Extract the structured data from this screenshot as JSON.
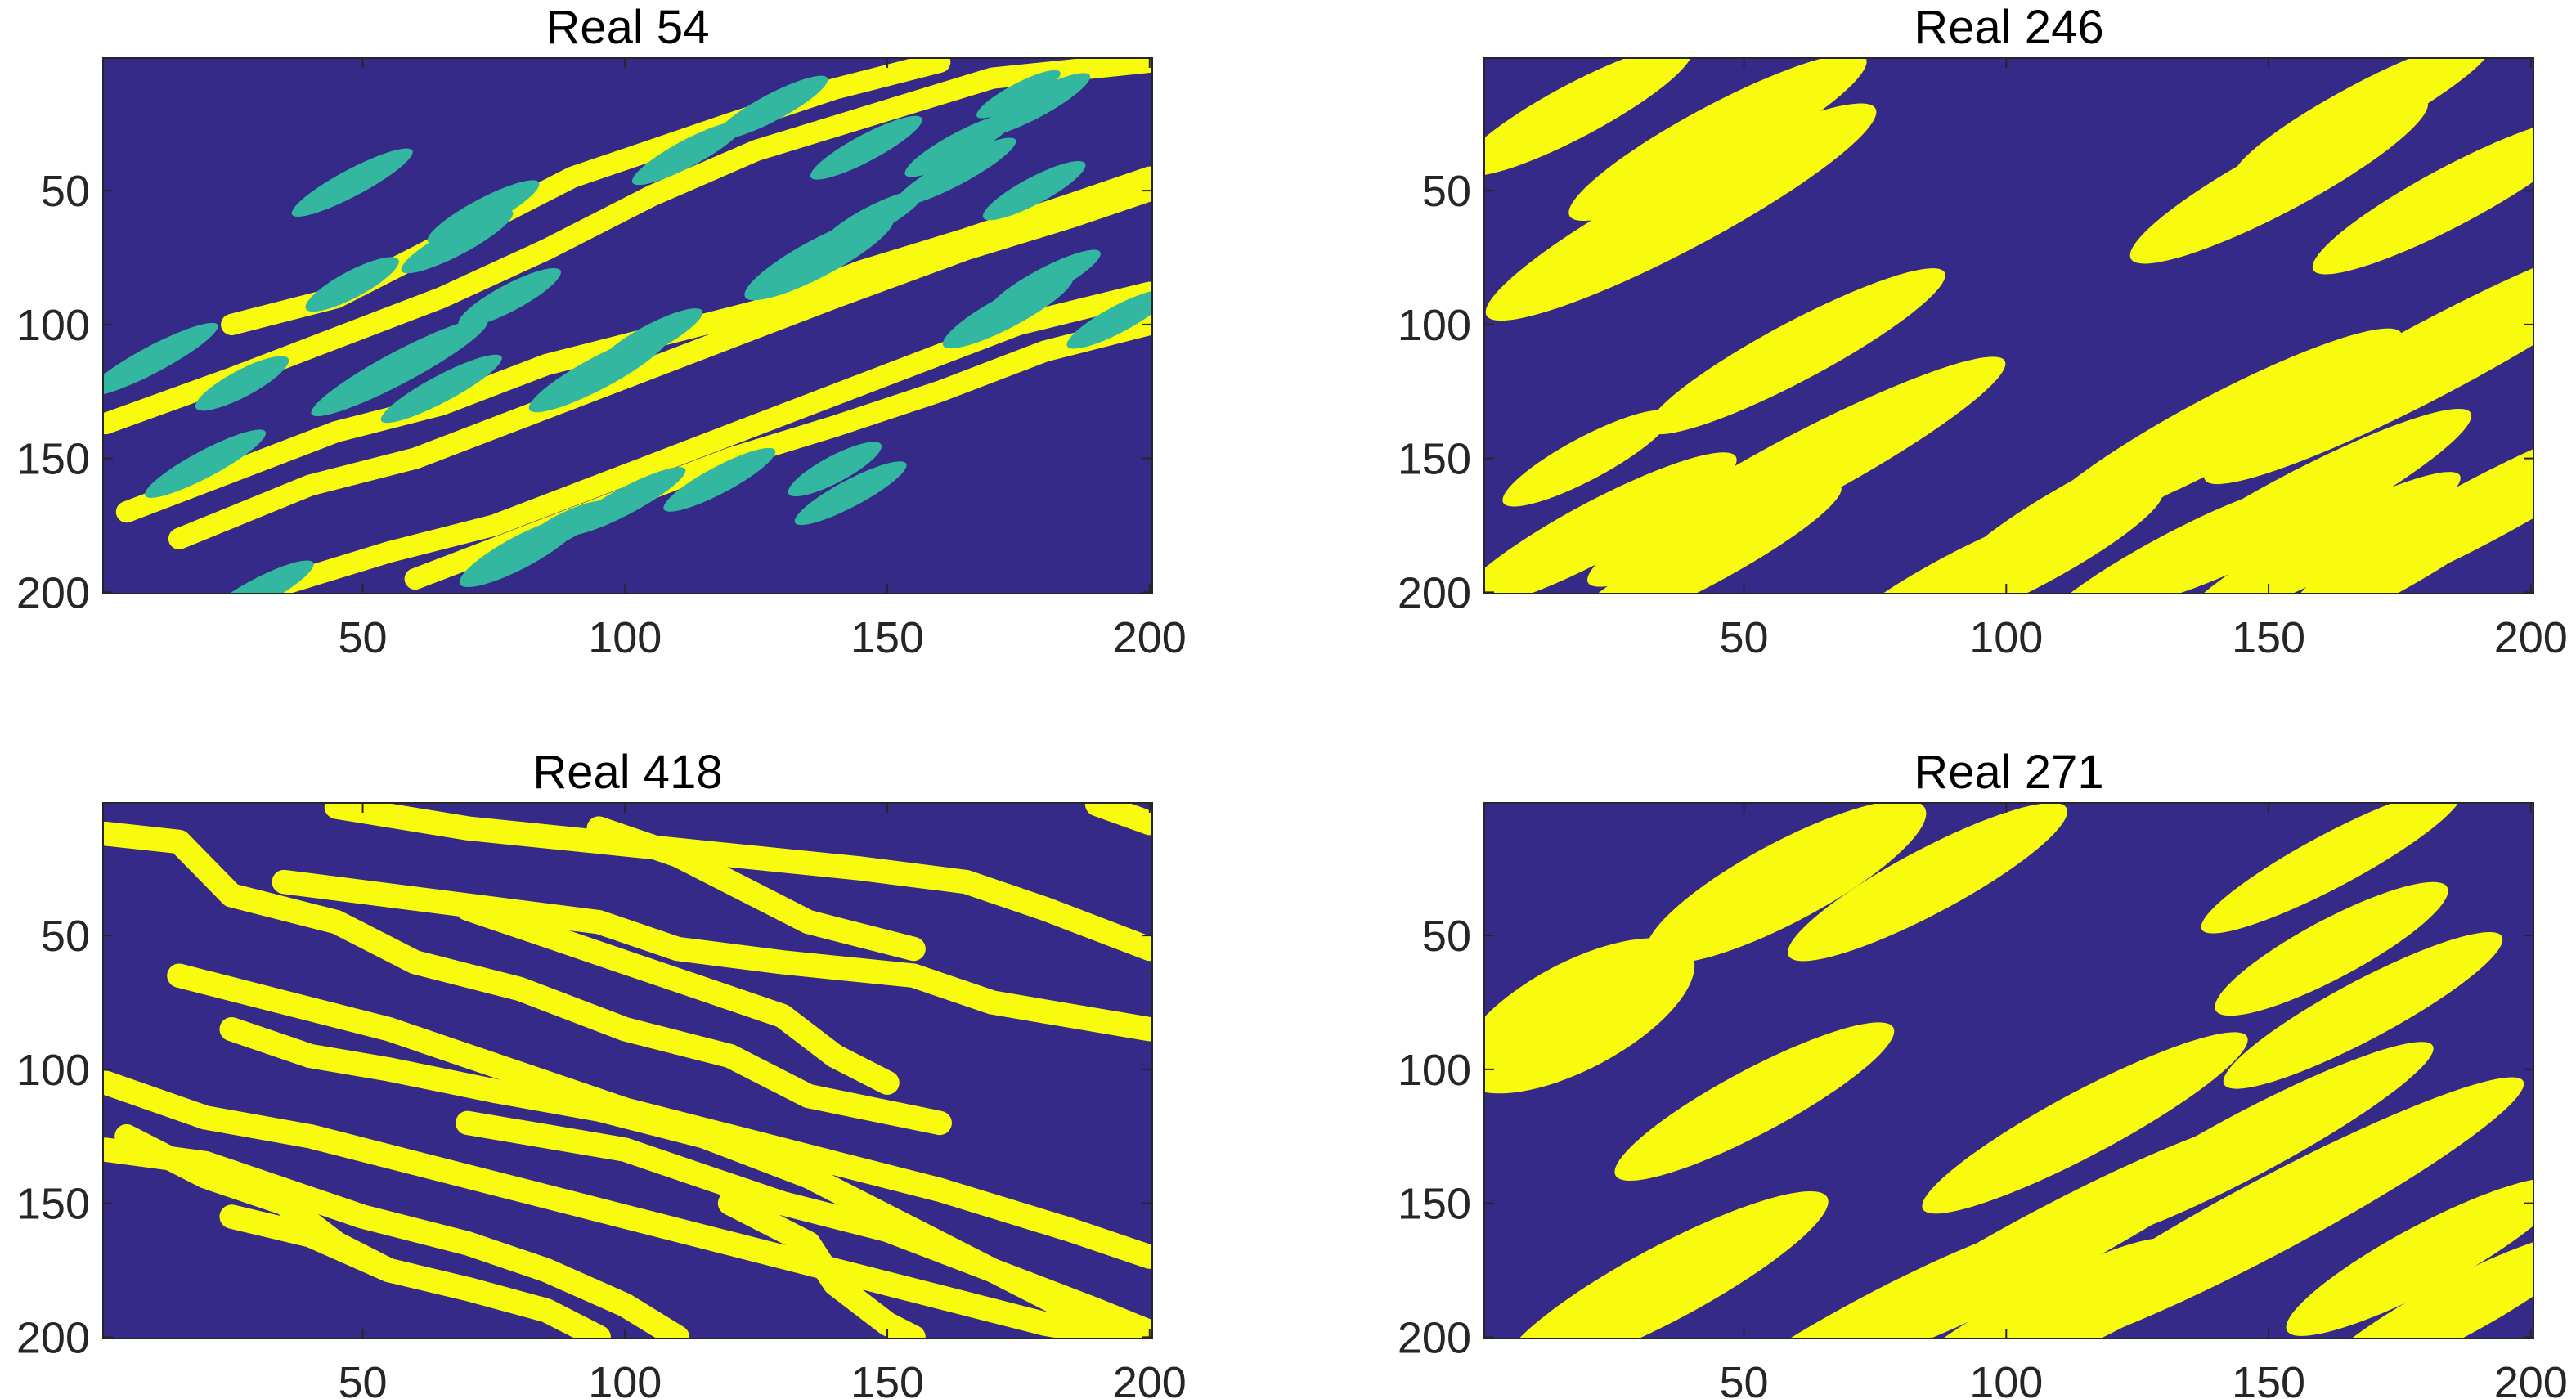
{
  "chart_data": {
    "type": "heatmap",
    "description_colors": {
      "background": "#352a87",
      "facies_2": "#f9fb0e",
      "facies_1": "#33b7a0"
    },
    "panels": [
      {
        "title": "Real 54",
        "xlim": [
          1,
          200
        ],
        "ylim": [
          1,
          200
        ],
        "xticks": [
          50,
          100,
          150,
          200
        ],
        "yticks": [
          50,
          100,
          150,
          200
        ],
        "y_reversed": true,
        "channels": [
          [
            [
              1,
              137
            ],
            [
              25,
              120
            ],
            [
              45,
              105
            ],
            [
              65,
              90
            ],
            [
              85,
              72
            ],
            [
              105,
              52
            ],
            [
              125,
              35
            ],
            [
              150,
              20
            ],
            [
              170,
              8
            ],
            [
              200,
              2
            ]
          ],
          [
            [
              15,
              180
            ],
            [
              40,
              160
            ],
            [
              60,
              150
            ],
            [
              80,
              135
            ],
            [
              100,
              120
            ],
            [
              120,
              105
            ],
            [
              140,
              90
            ],
            [
              165,
              72
            ],
            [
              185,
              60
            ],
            [
              200,
              50
            ]
          ],
          [
            [
              30,
              200
            ],
            [
              55,
              185
            ],
            [
              75,
              175
            ],
            [
              95,
              160
            ],
            [
              115,
              145
            ],
            [
              135,
              130
            ],
            [
              155,
              115
            ],
            [
              175,
              100
            ],
            [
              200,
              88
            ]
          ],
          [
            [
              25,
              100
            ],
            [
              45,
              90
            ],
            [
              60,
              75
            ],
            [
              75,
              60
            ],
            [
              90,
              45
            ],
            [
              105,
              35
            ],
            [
              120,
              25
            ],
            [
              140,
              12
            ],
            [
              160,
              2
            ]
          ],
          [
            [
              5,
              170
            ],
            [
              25,
              155
            ],
            [
              45,
              140
            ],
            [
              65,
              130
            ],
            [
              85,
              115
            ],
            [
              105,
              105
            ],
            [
              125,
              95
            ],
            [
              145,
              80
            ],
            [
              165,
              68
            ],
            [
              185,
              55
            ],
            [
              200,
              45
            ]
          ],
          [
            [
              60,
              195
            ],
            [
              80,
              180
            ],
            [
              100,
              165
            ],
            [
              120,
              150
            ],
            [
              140,
              138
            ],
            [
              160,
              125
            ],
            [
              180,
              110
            ],
            [
              200,
              100
            ]
          ]
        ],
        "lobes": [
          [
            10,
            113,
            14,
            5
          ],
          [
            20,
            152,
            13,
            5
          ],
          [
            30,
            200,
            12,
            5
          ],
          [
            27,
            122,
            10,
            5
          ],
          [
            48,
            47,
            13,
            5
          ],
          [
            57,
            116,
            19,
            6
          ],
          [
            68,
            69,
            12,
            5
          ],
          [
            48,
            85,
            10,
            5
          ],
          [
            65,
            124,
            13,
            5
          ],
          [
            73,
            58,
            12,
            5
          ],
          [
            78,
            90,
            11,
            5
          ],
          [
            80,
            185,
            13,
            6
          ],
          [
            88,
            176,
            10,
            5
          ],
          [
            95,
            118,
            15,
            6
          ],
          [
            100,
            166,
            13,
            5
          ],
          [
            112,
            36,
            12,
            5
          ],
          [
            118,
            158,
            12,
            5
          ],
          [
            105,
            105,
            11,
            5
          ],
          [
            137,
            75,
            16,
            7
          ],
          [
            146,
            34,
            12,
            5
          ],
          [
            147,
            61,
            11,
            5
          ],
          [
            143,
            163,
            12,
            5
          ],
          [
            140,
            154,
            10,
            5
          ],
          [
            163,
            43,
            13,
            5
          ],
          [
            164,
            33,
            12,
            5
          ],
          [
            173,
            95,
            14,
            6
          ],
          [
            178,
            50,
            11,
            5
          ],
          [
            180,
            84,
            12,
            5
          ],
          [
            178,
            18,
            12,
            5
          ],
          [
            128,
            19,
            12,
            5
          ],
          [
            194,
            98,
            11,
            5
          ],
          [
            175,
            14,
            9,
            4
          ]
        ]
      },
      {
        "title": "Real 246",
        "xlim": [
          1,
          200
        ],
        "ylim": [
          1,
          200
        ],
        "xticks": [
          50,
          100,
          150,
          200
        ],
        "yticks": [
          50,
          100,
          150,
          200
        ],
        "y_reversed": true,
        "lobes": [
          [
            18,
            20,
            25,
            10
          ],
          [
            45,
            30,
            32,
            12
          ],
          [
            38,
            58,
            42,
            14
          ],
          [
            60,
            110,
            32,
            11
          ],
          [
            168,
            20,
            28,
            10
          ],
          [
            152,
            46,
            32,
            12
          ],
          [
            185,
            52,
            30,
            11
          ],
          [
            182,
            112,
            50,
            14
          ],
          [
            140,
            140,
            40,
            13
          ],
          [
            118,
            165,
            32,
            11
          ],
          [
            155,
            168,
            38,
            12
          ],
          [
            160,
            184,
            30,
            10
          ],
          [
            132,
            188,
            30,
            10
          ],
          [
            60,
            155,
            45,
            13
          ],
          [
            22,
            177,
            30,
            11
          ],
          [
            42,
            188,
            30,
            10
          ],
          [
            105,
            188,
            28,
            10
          ],
          [
            20,
            150,
            18,
            8
          ],
          [
            190,
            170,
            40,
            12
          ],
          [
            170,
            195,
            30,
            9
          ],
          [
            90,
            194,
            25,
            8
          ]
        ]
      },
      {
        "title": "Real 418",
        "xlim": [
          1,
          200
        ],
        "ylim": [
          1,
          200
        ],
        "xticks": [
          50,
          100,
          150,
          200
        ],
        "yticks": [
          50,
          100,
          150,
          200
        ],
        "y_reversed": true,
        "channels": [
          [
            [
              1,
              12
            ],
            [
              15,
              15
            ],
            [
              25,
              35
            ],
            [
              45,
              45
            ],
            [
              60,
              60
            ],
            [
              80,
              70
            ],
            [
              100,
              85
            ],
            [
              120,
              95
            ],
            [
              135,
              110
            ],
            [
              160,
              120
            ]
          ],
          [
            [
              35,
              30
            ],
            [
              55,
              35
            ],
            [
              75,
              40
            ],
            [
              95,
              45
            ],
            [
              110,
              55
            ],
            [
              130,
              60
            ],
            [
              155,
              65
            ],
            [
              170,
              75
            ],
            [
              185,
              80
            ],
            [
              200,
              85
            ]
          ],
          [
            [
              45,
              2
            ],
            [
              70,
              10
            ],
            [
              95,
              15
            ],
            [
              120,
              20
            ],
            [
              145,
              25
            ],
            [
              165,
              30
            ],
            [
              180,
              40
            ],
            [
              200,
              55
            ]
          ],
          [
            [
              95,
              10
            ],
            [
              110,
              20
            ],
            [
              125,
              35
            ],
            [
              135,
              45
            ],
            [
              155,
              55
            ]
          ],
          [
            [
              15,
              65
            ],
            [
              35,
              75
            ],
            [
              55,
              85
            ],
            [
              70,
              95
            ],
            [
              85,
              105
            ],
            [
              100,
              115
            ],
            [
              120,
              125
            ],
            [
              140,
              135
            ],
            [
              160,
              145
            ],
            [
              185,
              160
            ],
            [
              200,
              170
            ]
          ],
          [
            [
              1,
              105
            ],
            [
              20,
              118
            ],
            [
              40,
              125
            ],
            [
              60,
              135
            ],
            [
              80,
              145
            ],
            [
              100,
              155
            ],
            [
              120,
              165
            ],
            [
              140,
              175
            ],
            [
              160,
              185
            ],
            [
              180,
              195
            ],
            [
              195,
              200
            ]
          ],
          [
            [
              1,
              130
            ],
            [
              20,
              135
            ],
            [
              35,
              145
            ],
            [
              50,
              155
            ],
            [
              70,
              165
            ],
            [
              85,
              175
            ],
            [
              100,
              188
            ],
            [
              110,
              200
            ]
          ],
          [
            [
              25,
              155
            ],
            [
              40,
              162
            ],
            [
              55,
              175
            ],
            [
              70,
              182
            ],
            [
              85,
              190
            ],
            [
              95,
              200
            ]
          ],
          [
            [
              25,
              85
            ],
            [
              40,
              95
            ],
            [
              55,
              100
            ],
            [
              75,
              108
            ],
            [
              95,
              115
            ],
            [
              115,
              125
            ],
            [
              135,
              140
            ],
            [
              150,
              155
            ],
            [
              165,
              170
            ],
            [
              180,
              185
            ],
            [
              195,
              200
            ]
          ],
          [
            [
              5,
              125
            ],
            [
              20,
              140
            ],
            [
              35,
              150
            ],
            [
              45,
              165
            ],
            [
              55,
              175
            ]
          ],
          [
            [
              70,
              120
            ],
            [
              85,
              125
            ],
            [
              100,
              130
            ],
            [
              115,
              140
            ],
            [
              130,
              150
            ],
            [
              150,
              160
            ],
            [
              170,
              175
            ],
            [
              190,
              190
            ],
            [
              200,
              198
            ]
          ],
          [
            [
              120,
              150
            ],
            [
              135,
              165
            ],
            [
              140,
              180
            ],
            [
              150,
              195
            ],
            [
              155,
              200
            ]
          ],
          [
            [
              70,
              40
            ],
            [
              85,
              50
            ],
            [
              100,
              60
            ],
            [
              115,
              70
            ],
            [
              130,
              80
            ],
            [
              140,
              95
            ],
            [
              150,
              105
            ]
          ],
          [
            [
              190,
              1
            ],
            [
              200,
              8
            ]
          ]
        ]
      },
      {
        "title": "Real 271",
        "xlim": [
          1,
          200
        ],
        "ylim": [
          1,
          200
        ],
        "xticks": [
          50,
          100,
          150,
          200
        ],
        "yticks": [
          50,
          100,
          150,
          200
        ],
        "y_reversed": true,
        "lobes": [
          [
            18,
            80,
            25,
            20
          ],
          [
            58,
            30,
            30,
            15
          ],
          [
            85,
            30,
            30,
            12
          ],
          [
            52,
            112,
            30,
            12
          ],
          [
            162,
            22,
            28,
            10
          ],
          [
            162,
            55,
            25,
            11
          ],
          [
            168,
            78,
            30,
            11
          ],
          [
            115,
            120,
            35,
            12
          ],
          [
            146,
            128,
            40,
            12
          ],
          [
            150,
            155,
            55,
            14
          ],
          [
            108,
            165,
            50,
            13
          ],
          [
            125,
            180,
            45,
            12
          ],
          [
            35,
            180,
            35,
            14
          ],
          [
            75,
            195,
            40,
            11
          ],
          [
            105,
            192,
            30,
            10
          ],
          [
            180,
            170,
            30,
            12
          ],
          [
            185,
            190,
            30,
            11
          ]
        ]
      }
    ]
  }
}
